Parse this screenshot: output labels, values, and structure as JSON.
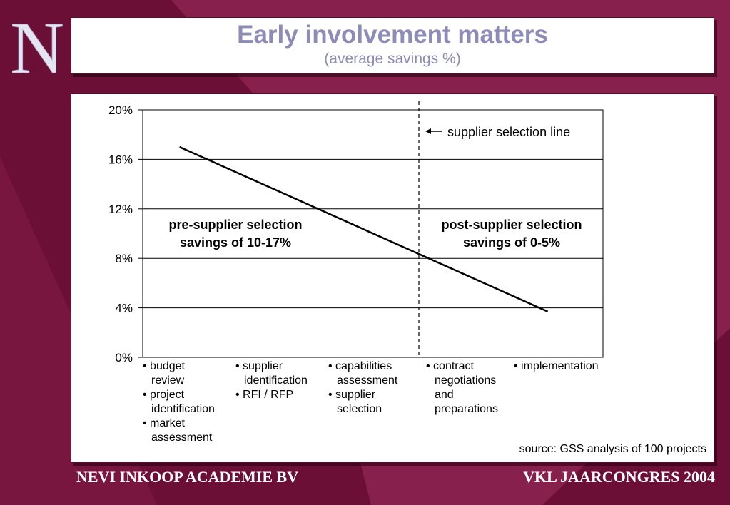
{
  "header": {
    "title": "Early involvement matters",
    "subtitle": "(average savings %)"
  },
  "logo_letter": "N",
  "colors": {
    "background_dark": "#6b0f36",
    "background_light": "#8c2350",
    "title_color": "#8c8cb6",
    "panel": "#ffffff",
    "footer_text": "#ffffff"
  },
  "chart_data": {
    "type": "line",
    "title": "Early involvement matters",
    "subtitle": "(average savings %)",
    "y_ticks": [
      "0%",
      "4%",
      "8%",
      "12%",
      "16%",
      "20%"
    ],
    "ylim": [
      0,
      20
    ],
    "xlim": [
      0,
      5
    ],
    "grid": true,
    "series": [
      {
        "points": [
          [
            0.4,
            17
          ],
          [
            4.4,
            3.7
          ]
        ]
      }
    ],
    "vertical_marker": {
      "x": 3,
      "label": "supplier selection line"
    },
    "annotations": {
      "pre": [
        "pre-supplier selection",
        "savings of 10-17%"
      ],
      "post": [
        "post-supplier selection",
        "savings of 0-5%"
      ]
    },
    "phases": [
      {
        "items": [
          [
            "budget",
            "review"
          ],
          [
            "project",
            "identification"
          ],
          [
            "market",
            "assessment"
          ]
        ]
      },
      {
        "items": [
          [
            "supplier",
            "identification"
          ],
          [
            "RFI / RFP"
          ]
        ]
      },
      {
        "items": [
          [
            "capabilities",
            "assessment"
          ],
          [
            "supplier",
            "selection"
          ]
        ]
      },
      {
        "items": [
          [
            "contract",
            "negotiations",
            "and",
            "preparations"
          ]
        ]
      },
      {
        "items": [
          [
            "implementation"
          ]
        ]
      }
    ]
  },
  "source": "source: GSS analysis of 100 projects",
  "footer": {
    "left": "NEVI INKOOP ACADEMIE BV",
    "right": "VKL  JAARCONGRES 2004"
  }
}
